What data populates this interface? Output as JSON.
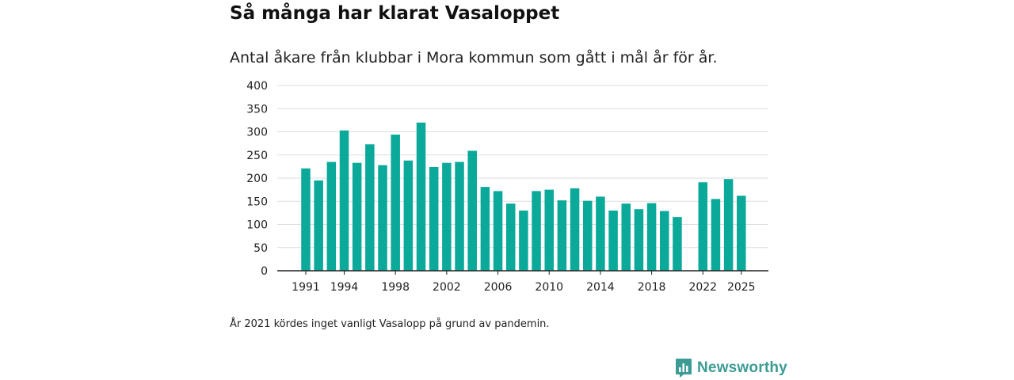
{
  "title": "Så många har klarat Vasaloppet",
  "subtitle": "Antal åkare från klubbar i Mora kommun som gått i mål år för år.",
  "footnote": "År 2021 kördes inget vanligt Vasalopp på grund av pandemin.",
  "brand": {
    "name": "Newsworthy",
    "icon": "newsworthy-logo-icon"
  },
  "colors": {
    "bar": "#0aa99a",
    "grid": "#dddddd",
    "axis": "#222222",
    "brand": "#3c9c95"
  },
  "chart_data": {
    "type": "bar",
    "title": "Så många har klarat Vasaloppet",
    "xlabel": "",
    "ylabel": "",
    "ylim": [
      0,
      400
    ],
    "yticks": [
      0,
      50,
      100,
      150,
      200,
      250,
      300,
      350,
      400
    ],
    "xtick_labels": [
      "1991",
      "1994",
      "1998",
      "2002",
      "2006",
      "2010",
      "2014",
      "2018",
      "2022",
      "2025"
    ],
    "categories": [
      "1991",
      "1992",
      "1993",
      "1994",
      "1995",
      "1996",
      "1997",
      "1998",
      "1999",
      "2000",
      "2001",
      "2002",
      "2003",
      "2004",
      "2005",
      "2006",
      "2007",
      "2008",
      "2009",
      "2010",
      "2011",
      "2012",
      "2013",
      "2014",
      "2015",
      "2016",
      "2017",
      "2018",
      "2019",
      "2020",
      "2021",
      "2022",
      "2023",
      "2024",
      "2025"
    ],
    "values": [
      221,
      195,
      235,
      303,
      233,
      273,
      228,
      294,
      238,
      320,
      224,
      233,
      235,
      259,
      181,
      172,
      145,
      130,
      172,
      175,
      152,
      178,
      151,
      160,
      130,
      145,
      133,
      146,
      129,
      116,
      null,
      191,
      155,
      198,
      162
    ],
    "grid": true
  }
}
